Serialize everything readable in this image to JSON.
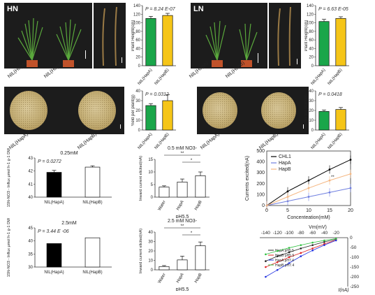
{
  "conditions": {
    "hn": "HN",
    "ln": "LN"
  },
  "photo_captions": {
    "nil_hapa": "NIL(HapA)",
    "nil_hapb": "NIL(HapB)"
  },
  "colors": {
    "hapa_green": "#1aa64a",
    "hapb_yellow": "#f5c518",
    "photo_bg": "#1c1c1c",
    "pot": "#c0522a",
    "chl1": "#000000",
    "hapa_blue": "#6f7fe0",
    "hapb_orange": "#f5b782"
  },
  "chart_data": [
    {
      "id": "hn_height",
      "type": "bar",
      "categories": [
        "NIL(HapA)",
        "NIL(HapB)"
      ],
      "values": [
        110,
        117
      ],
      "errors": [
        5,
        5
      ],
      "ylabel": "Plant Height(cm)",
      "ylim": [
        0,
        140
      ],
      "yticks": [
        0,
        20,
        40,
        60,
        80,
        100,
        120,
        140
      ],
      "annotation": "P = 8.24 E-07"
    },
    {
      "id": "ln_height",
      "type": "bar",
      "categories": [
        "NIL(HapA)",
        "NIL(HapB)"
      ],
      "values": [
        103,
        110
      ],
      "errors": [
        5,
        4
      ],
      "ylabel": "Plant Height(cm)",
      "ylim": [
        0,
        140
      ],
      "yticks": [
        0,
        20,
        40,
        60,
        80,
        100,
        120,
        140
      ],
      "annotation": "P = 6.63 E-05"
    },
    {
      "id": "hn_yield",
      "type": "bar",
      "categories": [
        "NIL(HapA)",
        "NIL(HapB)"
      ],
      "values": [
        25,
        30
      ],
      "errors": [
        2,
        6
      ],
      "ylabel": "Yield per plant(g)",
      "ylim": [
        0,
        40
      ],
      "yticks": [
        0,
        10,
        20,
        30,
        40
      ],
      "annotation": "P = 0.0312"
    },
    {
      "id": "ln_yield",
      "type": "bar",
      "categories": [
        "NIL(HapA)",
        "NIL(HapB)"
      ],
      "values": [
        19,
        21
      ],
      "errors": [
        1.5,
        2
      ],
      "ylabel": "Yield per plant(g)",
      "ylim": [
        0,
        40
      ],
      "yticks": [
        0,
        10,
        20,
        30,
        40
      ],
      "annotation": "P = 0.0418"
    },
    {
      "id": "influx_025",
      "type": "bar",
      "categories": [
        "NIL(HapA)",
        "NIL(HapB)"
      ],
      "values": [
        41.9,
        42.3
      ],
      "errors": [
        0.15,
        0.1
      ],
      "title": "0.25mM",
      "ylabel": "15N-NO3 - Influx μmol h-1 g-1 DW",
      "ylim": [
        40,
        43
      ],
      "yticks": [
        40,
        41,
        42,
        43
      ],
      "annotation": "P = 0.0272"
    },
    {
      "id": "influx_25",
      "type": "bar",
      "categories": [
        "NIL(HapA)",
        "NIL(HapB)"
      ],
      "values": [
        39,
        41.2
      ],
      "errors": [
        0,
        0
      ],
      "title": "2.5mM",
      "ylabel": "15N-NO3 - Influx μmol h-1 g-1 DW",
      "ylim": [
        30,
        45
      ],
      "yticks": [
        30,
        35,
        40,
        45
      ],
      "annotation": "P = 3.44 E -06"
    },
    {
      "id": "current_05",
      "type": "bar",
      "categories": [
        "Water",
        "HapA",
        "HapB"
      ],
      "values": [
        4,
        6,
        8.5
      ],
      "errors": [
        0.5,
        1.2,
        1.5
      ],
      "title": "0.5 mM NO3-",
      "xlabel": "pH5.5",
      "ylabel": "Inward current elicited(nA)",
      "ylim": [
        0,
        15
      ],
      "yticks": [
        0,
        5,
        10,
        15
      ],
      "sig": [
        "**",
        "*"
      ]
    },
    {
      "id": "current_25",
      "type": "bar",
      "categories": [
        "Water",
        "HapA",
        "HapB"
      ],
      "values": [
        3.5,
        10.5,
        25.5
      ],
      "errors": [
        1,
        4,
        4
      ],
      "title": "2.5 mM NO3-",
      "xlabel": "pH5.5",
      "ylabel": "Inward current elicited(nA)",
      "ylim": [
        0,
        40
      ],
      "yticks": [
        0,
        10,
        20,
        30,
        40
      ],
      "sig": [
        "**",
        "*"
      ]
    },
    {
      "id": "dose_response",
      "type": "line",
      "x": [
        0,
        5,
        10,
        15,
        20
      ],
      "series": [
        {
          "name": "CHL1",
          "values": [
            0,
            130,
            230,
            330,
            420
          ]
        },
        {
          "name": "HapA",
          "values": [
            0,
            40,
            80,
            120,
            160
          ]
        },
        {
          "name": "HapB",
          "values": [
            0,
            80,
            160,
            230,
            290
          ]
        }
      ],
      "xlabel": "Concenteation(mM)",
      "ylabel": "Currents excited(nA)",
      "ylim": [
        0,
        500
      ],
      "yticks": [
        0,
        100,
        200,
        300,
        400,
        500
      ],
      "xticks": [
        0,
        5,
        10,
        15,
        20
      ],
      "annotation": "**"
    },
    {
      "id": "iv_curve",
      "type": "line",
      "x": [
        -140,
        -120,
        -100,
        -80,
        -60,
        -40,
        -20
      ],
      "series": [
        {
          "name": "HapA pH5.5",
          "values": [
            -120,
            -95,
            -75,
            -55,
            -38,
            -22,
            -8
          ]
        },
        {
          "name": "HapB pH5.5",
          "values": [
            -150,
            -125,
            -100,
            -78,
            -55,
            -32,
            -12
          ]
        },
        {
          "name": "HapA pH7.4",
          "values": [
            -200,
            -165,
            -130,
            -95,
            -65,
            -38,
            -14
          ]
        },
        {
          "name": "HapB pH7.4",
          "values": [
            -85,
            -68,
            -52,
            -38,
            -25,
            -14,
            -5
          ]
        }
      ],
      "xlabel": "Vm(mV)",
      "ylabel": "I(nA)",
      "xticks": [
        -140,
        -120,
        -100,
        -80,
        -60,
        -40,
        -20
      ],
      "yticks": [
        0,
        -50,
        -100,
        -150,
        -200,
        -250
      ],
      "ylim": [
        -250,
        0
      ]
    }
  ]
}
